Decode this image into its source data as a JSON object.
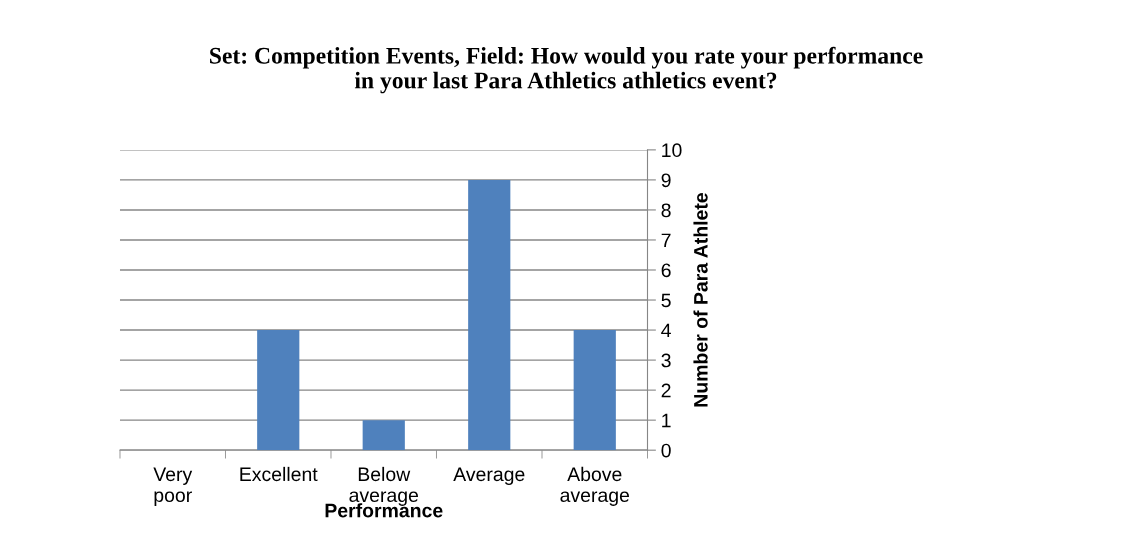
{
  "chart_data": {
    "type": "bar",
    "title": "Set: Competition Events, Field: How would you rate your performance\nin your last Para Athletics athletics event?",
    "categories": [
      "Very poor",
      "Excellent",
      "Below average",
      "Average",
      "Above average"
    ],
    "values": [
      0,
      4,
      1,
      9,
      4
    ],
    "color": "#4f81bd",
    "xlabel": "Performance",
    "ylabel": "Number of Para Athlete",
    "ylim": [
      0,
      10
    ],
    "yticks": [
      0,
      1,
      2,
      3,
      4,
      5,
      6,
      7,
      8,
      9,
      10
    ],
    "grid": "y",
    "legend": false
  }
}
